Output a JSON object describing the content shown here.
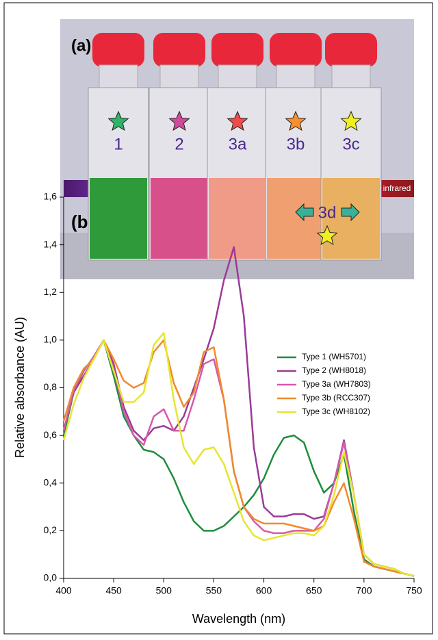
{
  "panel_a": {
    "label": "(a)",
    "vials": [
      {
        "label": "1",
        "star_color": "#2fb36a",
        "liquid": "#2f9a3a"
      },
      {
        "label": "2",
        "star_color": "#d04a9a",
        "liquid": "#d8508a"
      },
      {
        "label": "3a",
        "star_color": "#f04a4a",
        "liquid": "#f09a88"
      },
      {
        "label": "3b",
        "star_color": "#f59030",
        "liquid": "#f0a070"
      },
      {
        "label": "3c",
        "star_color": "#f0ef20",
        "liquid": "#e8b060"
      }
    ],
    "extra_label": "3d"
  },
  "chart_data": {
    "type": "line",
    "panel_label": "(b)",
    "spectrum_label": "infrared",
    "x_label": "Wavelength (nm)",
    "y_label": "Relative absorbance (AU)",
    "x": [
      400,
      410,
      420,
      430,
      440,
      450,
      460,
      470,
      480,
      490,
      500,
      510,
      520,
      530,
      540,
      550,
      560,
      570,
      580,
      590,
      600,
      610,
      620,
      630,
      640,
      650,
      660,
      670,
      680,
      690,
      700,
      710,
      720,
      730,
      740,
      750
    ],
    "series": [
      {
        "name": "Type 1 (WH5701)",
        "color": "#1e8c3c",
        "values": [
          0.6,
          0.78,
          0.87,
          0.93,
          1.0,
          0.85,
          0.68,
          0.6,
          0.54,
          0.53,
          0.5,
          0.42,
          0.32,
          0.24,
          0.2,
          0.2,
          0.22,
          0.26,
          0.3,
          0.35,
          0.42,
          0.52,
          0.59,
          0.6,
          0.57,
          0.45,
          0.36,
          0.4,
          0.52,
          0.28,
          0.08,
          0.05,
          0.04,
          0.03,
          0.02,
          0.01
        ]
      },
      {
        "name": "Type 2 (WH8018)",
        "color": "#9b3a98",
        "values": [
          0.62,
          0.78,
          0.85,
          0.92,
          1.0,
          0.9,
          0.72,
          0.62,
          0.58,
          0.63,
          0.64,
          0.62,
          0.68,
          0.8,
          0.92,
          1.05,
          1.25,
          1.39,
          1.1,
          0.55,
          0.3,
          0.26,
          0.26,
          0.27,
          0.27,
          0.25,
          0.26,
          0.4,
          0.58,
          0.35,
          0.1,
          0.06,
          0.05,
          0.04,
          0.02,
          0.01
        ]
      },
      {
        "name": "Type 3a (WH7803)",
        "color": "#d65aa8",
        "values": [
          0.62,
          0.79,
          0.87,
          0.93,
          1.0,
          0.88,
          0.7,
          0.6,
          0.56,
          0.68,
          0.71,
          0.62,
          0.62,
          0.75,
          0.9,
          0.92,
          0.75,
          0.45,
          0.3,
          0.24,
          0.2,
          0.19,
          0.19,
          0.2,
          0.2,
          0.2,
          0.25,
          0.4,
          0.57,
          0.35,
          0.1,
          0.06,
          0.05,
          0.04,
          0.02,
          0.01
        ]
      },
      {
        "name": "Type 3b (RCC307)",
        "color": "#f08a2a",
        "values": [
          0.66,
          0.8,
          0.88,
          0.92,
          1.0,
          0.92,
          0.83,
          0.8,
          0.82,
          0.95,
          1.0,
          0.82,
          0.72,
          0.78,
          0.95,
          0.97,
          0.75,
          0.45,
          0.3,
          0.25,
          0.23,
          0.23,
          0.23,
          0.22,
          0.21,
          0.2,
          0.22,
          0.32,
          0.4,
          0.25,
          0.07,
          0.05,
          0.04,
          0.03,
          0.02,
          0.01
        ]
      },
      {
        "name": "Type 3c (WH8102)",
        "color": "#e6e62e",
        "values": [
          0.58,
          0.73,
          0.84,
          0.92,
          1.0,
          0.87,
          0.74,
          0.74,
          0.78,
          0.98,
          1.03,
          0.75,
          0.55,
          0.48,
          0.54,
          0.55,
          0.48,
          0.36,
          0.24,
          0.18,
          0.16,
          0.17,
          0.18,
          0.19,
          0.19,
          0.18,
          0.22,
          0.35,
          0.53,
          0.35,
          0.1,
          0.06,
          0.05,
          0.04,
          0.02,
          0.01
        ]
      }
    ],
    "xlim": [
      400,
      750
    ],
    "xticks": [
      400,
      450,
      500,
      550,
      600,
      650,
      700,
      750
    ],
    "ylim": [
      0,
      1.6
    ],
    "yticks": [
      {
        "value": 0,
        "label": "0,0"
      },
      {
        "value": 0.2,
        "label": "0,2"
      },
      {
        "value": 0.4,
        "label": "0,4"
      },
      {
        "value": 0.6,
        "label": "0,6"
      },
      {
        "value": 0.8,
        "label": "0,8"
      },
      {
        "value": 1.0,
        "label": "1,0"
      },
      {
        "value": 1.2,
        "label": "1,2"
      },
      {
        "value": 1.4,
        "label": "1,4"
      },
      {
        "value": 1.6,
        "label": "1,6"
      }
    ]
  }
}
